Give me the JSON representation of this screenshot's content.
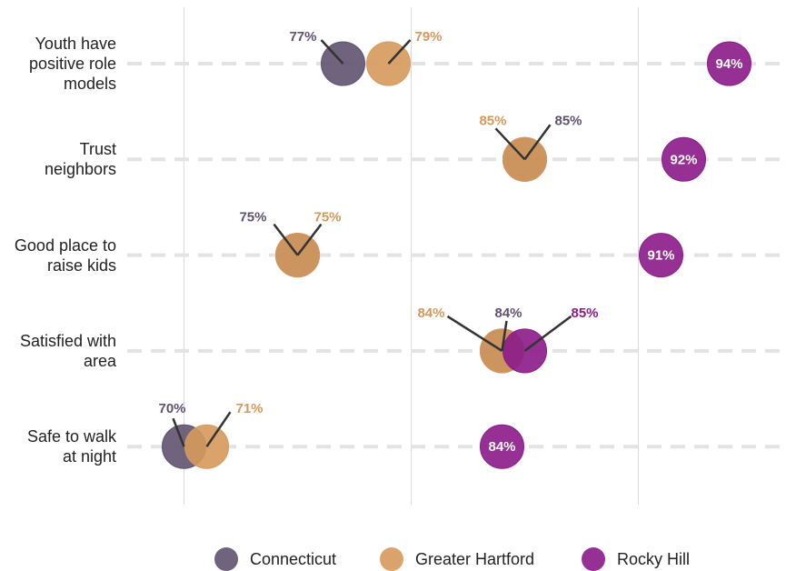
{
  "chart_data": {
    "type": "dot",
    "categories": [
      "Youth have positive role models",
      "Trust neighbors",
      "Good place to raise kids",
      "Satisfied with area",
      "Safe to walk at night"
    ],
    "series": [
      {
        "name": "Connecticut",
        "color": "#5f5270",
        "values": [
          77,
          85,
          75,
          84,
          70
        ],
        "value_labels": [
          "77%",
          "85%",
          "75%",
          "84%",
          "70%"
        ]
      },
      {
        "name": "Greater Hartford",
        "color": "#d6995c",
        "values": [
          79,
          85,
          75,
          84,
          71
        ],
        "value_labels": [
          "79%",
          "85%",
          "75%",
          "84%",
          "71%"
        ]
      },
      {
        "name": "Rocky Hill",
        "color": "#8c1a8a",
        "values": [
          94,
          92,
          91,
          85,
          84
        ],
        "value_labels": [
          "94%",
          "92%",
          "91%",
          "85%",
          "84%"
        ]
      }
    ],
    "xlim": [
      67.5,
      96.5
    ],
    "xticks": [
      70,
      80,
      90
    ],
    "grid": true,
    "legend": "bottom"
  }
}
